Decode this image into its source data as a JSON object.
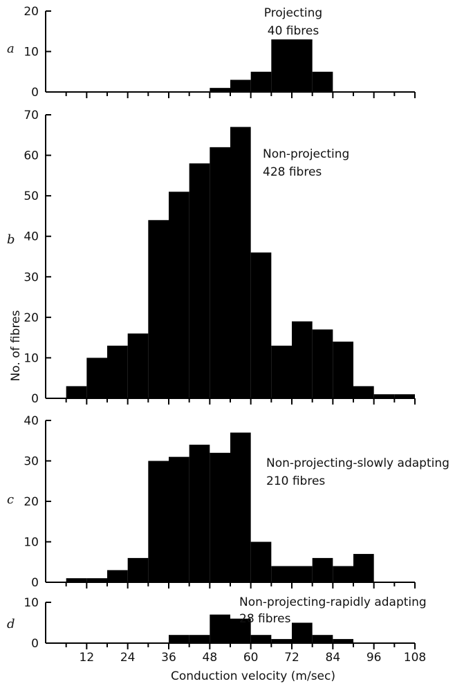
{
  "chart_data": [
    {
      "type": "bar",
      "panel": "a",
      "annotation": [
        "Projecting",
        "40 fibres"
      ],
      "bin_width": 6,
      "bins_start": [
        48,
        54,
        60,
        66,
        72,
        78
      ],
      "values": [
        1,
        3,
        5,
        13,
        13,
        5
      ],
      "ylim": [
        0,
        20
      ],
      "yticks": [
        0,
        10,
        20
      ]
    },
    {
      "type": "bar",
      "panel": "b",
      "annotation": [
        "Non-projecting",
        "428 fibres"
      ],
      "bin_width": 6,
      "bins_start": [
        6,
        12,
        18,
        24,
        30,
        36,
        42,
        48,
        54,
        60,
        66,
        72,
        78,
        84,
        90,
        96,
        102
      ],
      "values": [
        3,
        10,
        13,
        16,
        44,
        51,
        58,
        62,
        67,
        36,
        13,
        19,
        17,
        14,
        3,
        1,
        1
      ],
      "ylim": [
        0,
        70
      ],
      "yticks": [
        0,
        10,
        20,
        30,
        40,
        50,
        60,
        70
      ]
    },
    {
      "type": "bar",
      "panel": "c",
      "annotation": [
        "Non-projecting-slowly adapting",
        "210 fibres"
      ],
      "bin_width": 6,
      "bins_start": [
        6,
        12,
        18,
        24,
        30,
        36,
        42,
        48,
        54,
        60,
        66,
        72,
        78,
        84,
        90
      ],
      "values": [
        1,
        1,
        3,
        6,
        30,
        31,
        34,
        32,
        37,
        10,
        4,
        4,
        6,
        4,
        7
      ],
      "ylim": [
        0,
        40
      ],
      "yticks": [
        0,
        10,
        20,
        30,
        40
      ]
    },
    {
      "type": "bar",
      "panel": "d",
      "annotation": [
        "Non-projecting-rapidly adapting",
        "28 fibres"
      ],
      "bin_width": 6,
      "bins_start": [
        36,
        42,
        48,
        54,
        60,
        66,
        72,
        78,
        84
      ],
      "values": [
        2,
        2,
        7,
        6,
        2,
        1,
        5,
        2,
        1
      ],
      "ylim": [
        0,
        10
      ],
      "yticks": [
        0,
        10
      ]
    }
  ],
  "shared": {
    "xlim": [
      0,
      108
    ],
    "xticks": [
      12,
      24,
      36,
      48,
      60,
      72,
      84,
      96,
      108
    ],
    "xlabel": "Conduction velocity (m/sec)",
    "ylabel": "No. of fibres"
  }
}
